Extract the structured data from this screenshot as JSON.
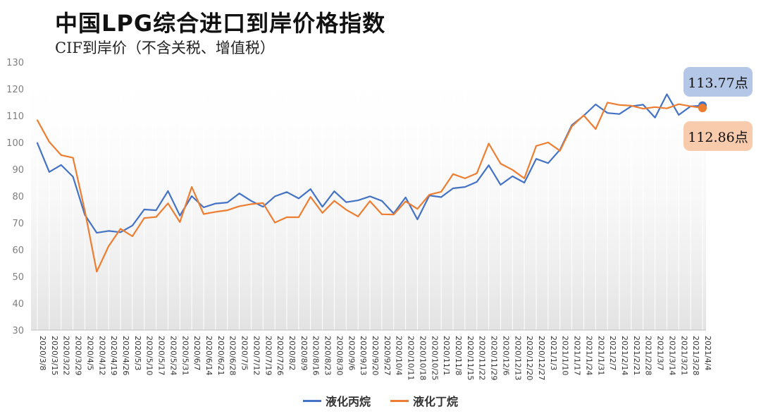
{
  "title": "中国LPG综合进口到岸价格指数",
  "subtitle": "CIF到岸价（不含关税、增值税）",
  "colors": {
    "propane": "#4472c4",
    "butane": "#ed7d31",
    "propane_box": "#b4c7e7",
    "butane_box": "#f8cbad"
  },
  "callouts": {
    "propane": "113.77点",
    "butane": "112.86点"
  },
  "chart_data": {
    "type": "line",
    "title": "中国LPG综合进口到岸价格指数",
    "subtitle": "CIF到岸价（不含关税、增值税）",
    "ylim": [
      30,
      130
    ],
    "yticks": [
      30,
      40,
      50,
      60,
      70,
      80,
      90,
      100,
      110,
      120,
      130
    ],
    "grid": false,
    "legend_position": "bottom",
    "x": [
      "2020/3/8",
      "2020/3/15",
      "2020/3/22",
      "2020/3/29",
      "2020/4/5",
      "2020/4/12",
      "2020/4/19",
      "2020/4/26",
      "2020/5/3",
      "2020/5/10",
      "2020/5/17",
      "2020/5/24",
      "2020/5/31",
      "2020/6/7",
      "2020/6/14",
      "2020/6/21",
      "2020/6/28",
      "2020/7/5",
      "2020/7/12",
      "2020/7/19",
      "2020/7/26",
      "2020/8/2",
      "2020/8/9",
      "2020/8/16",
      "2020/8/23",
      "2020/8/30",
      "2020/9/6",
      "2020/9/13",
      "2020/9/20",
      "2020/9/27",
      "2020/10/4",
      "2020/10/11",
      "2020/10/18",
      "2020/10/25",
      "2020/11/1",
      "2020/11/8",
      "2020/11/15",
      "2020/11/22",
      "2020/11/29",
      "2020/12/6",
      "2020/12/13",
      "2020/12/20",
      "2020/12/27",
      "2021/1/3",
      "2021/1/10",
      "2021/1/17",
      "2021/1/24",
      "2021/1/31",
      "2021/2/7",
      "2021/2/14",
      "2021/2/21",
      "2021/2/28",
      "2021/3/7",
      "2021/3/14",
      "2021/3/21",
      "2021/3/28",
      "2021/4/4"
    ],
    "series": [
      {
        "name": "液化丙烷",
        "color": "#4472c4",
        "values": [
          99.8,
          89.0,
          91.6,
          87.2,
          73.0,
          66.3,
          67.0,
          66.5,
          69.0,
          75.0,
          74.7,
          81.9,
          72.7,
          80.0,
          75.8,
          77.2,
          77.6,
          81.0,
          78.2,
          76.0,
          79.9,
          81.5,
          79.1,
          82.6,
          76.0,
          81.8,
          77.7,
          78.4,
          79.9,
          78.2,
          73.5,
          79.5,
          71.3,
          80.2,
          79.6,
          82.9,
          83.4,
          85.3,
          91.5,
          84.2,
          87.4,
          85.0,
          93.9,
          92.3,
          97.3,
          106.5,
          110.0,
          114.2,
          111.0,
          110.6,
          113.5,
          114.1,
          109.3,
          118.0,
          110.3,
          113.5,
          113.77
        ]
      },
      {
        "name": "液化丁烷",
        "color": "#ed7d31",
        "values": [
          108.3,
          100.2,
          95.3,
          94.3,
          74.5,
          51.8,
          61.3,
          67.8,
          65.0,
          71.8,
          72.2,
          77.3,
          70.3,
          83.4,
          73.3,
          74.1,
          74.7,
          76.2,
          77.0,
          77.4,
          70.1,
          72.1,
          72.1,
          79.7,
          73.7,
          78.2,
          74.9,
          72.4,
          78.1,
          73.2,
          73.1,
          78.0,
          75.2,
          80.5,
          81.6,
          88.2,
          86.6,
          88.5,
          99.6,
          92.1,
          89.8,
          86.6,
          98.7,
          100.0,
          96.9,
          106.0,
          110.1,
          105.0,
          114.9,
          114.0,
          113.7,
          112.6,
          113.2,
          112.7,
          114.3,
          113.5,
          112.86
        ]
      }
    ]
  },
  "legend": [
    {
      "label": "液化丙烷",
      "color": "#4472c4"
    },
    {
      "label": "液化丁烷",
      "color": "#ed7d31"
    }
  ]
}
